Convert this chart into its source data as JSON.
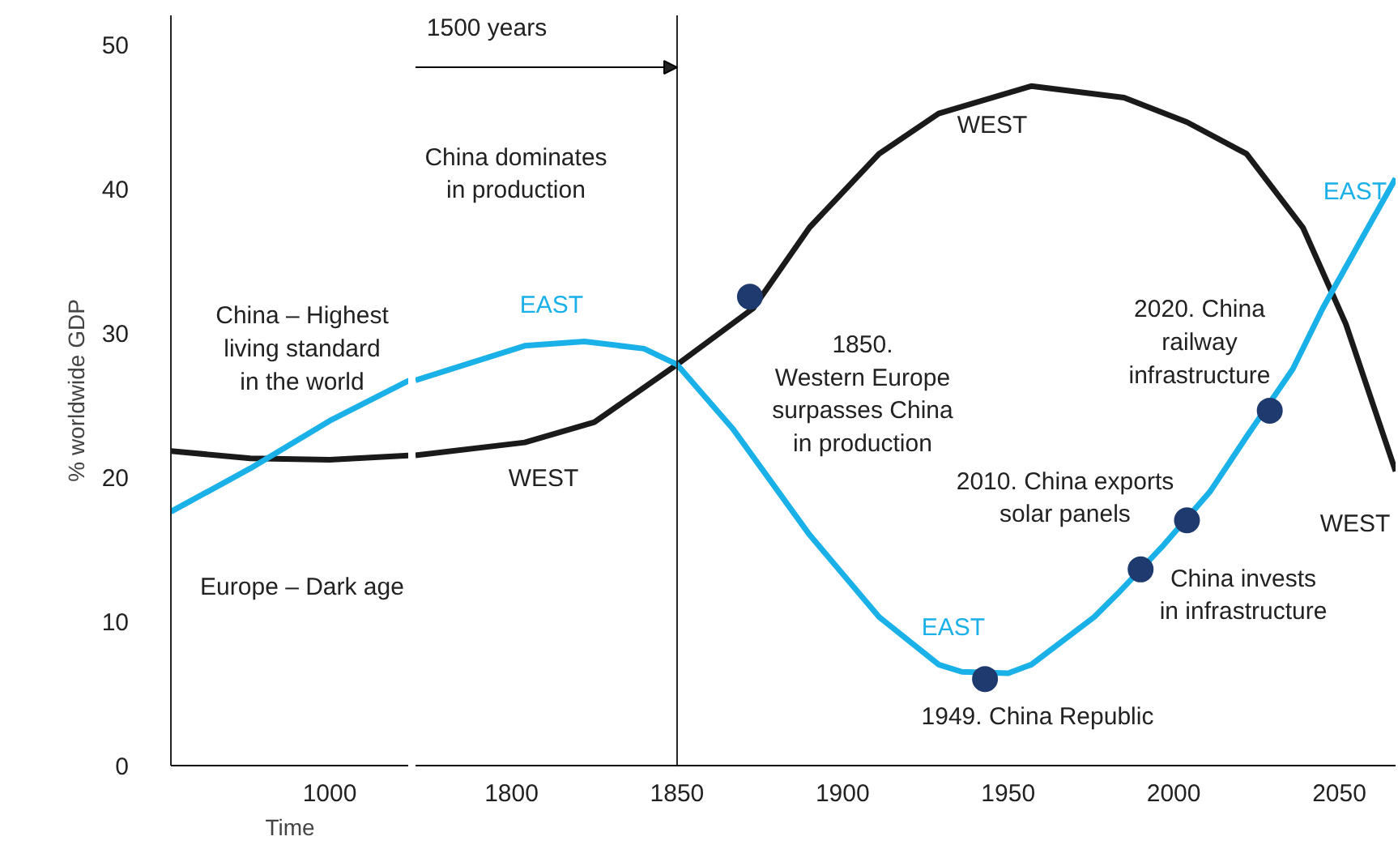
{
  "chart_data": [
    {
      "type": "line",
      "xlabel": "Time",
      "ylabel": "% worldwide GDP",
      "categories": [
        null,
        null,
        "1000",
        null
      ],
      "ylim": [
        0,
        52
      ],
      "yticks": [
        0,
        10,
        20,
        30,
        40,
        50
      ],
      "grid": false,
      "line_style": "solid",
      "series": [
        {
          "color": "#1a1a1a",
          "values": [
            21.8,
            21.3,
            21.2,
            21.5
          ]
        },
        {
          "color": "#1ab0e8",
          "values": [
            17.6,
            20.6,
            23.9,
            26.7
          ]
        }
      ],
      "annotations": [
        "China – Highest\nliving standard\nin the world",
        "Europe – Dark age"
      ]
    },
    {
      "type": "line",
      "xlim": [
        1771,
        2067
      ],
      "ylim": [
        0,
        52
      ],
      "xticks": [
        1800,
        1850,
        1900,
        1950,
        2000,
        2050
      ],
      "yticks": [
        0,
        10,
        20,
        30,
        40,
        50
      ],
      "tick_labels": "x",
      "grid": false,
      "line_style": "solid",
      "series": [
        {
          "color": "#1a1a1a",
          "x": [
            1771,
            1804,
            1825,
            1850,
            1873,
            1890,
            1911,
            1929,
            1957,
            1985,
            2004,
            2022,
            2039,
            2052,
            2067
          ],
          "values": [
            21.5,
            22.4,
            23.8,
            27.8,
            31.7,
            37.3,
            42.4,
            45.2,
            47.1,
            46.3,
            44.6,
            42.4,
            37.3,
            30.6,
            20.4
          ]
        },
        {
          "color": "#1ab0e8",
          "x": [
            1771,
            1804,
            1822,
            1840,
            1850,
            1867,
            1890,
            1911,
            1929,
            1936,
            1950,
            1957,
            1976,
            1983,
            1997,
            2011,
            2022,
            2036,
            2045,
            2067
          ],
          "values": [
            26.7,
            29.1,
            29.4,
            28.9,
            27.8,
            23.3,
            16.0,
            10.3,
            7.0,
            6.5,
            6.4,
            7.0,
            10.3,
            11.9,
            15.3,
            19.0,
            22.8,
            27.5,
            31.7,
            40.7
          ]
        },
        {
          "type": "scatter",
          "color": "#1f3a6e",
          "x": [
            1872,
            1943,
            1990,
            2004,
            2029
          ],
          "values": [
            32.5,
            6.0,
            13.6,
            17.0,
            24.6
          ]
        }
      ],
      "ref_lines": [
        {
          "axis": "x",
          "value": 1850
        }
      ],
      "annotations": [
        {
          "text": "1500 years",
          "x": 1850,
          "y": 48.4
        },
        "China dominates\nin production",
        "1850.\nWestern Europe\nsurpasses China\nin production",
        "1949. China Republic",
        "China invests\nin infrastructure",
        "2010. China exports\nsolar panels",
        "2020. China\nrailway\ninfrastructure",
        "WEST",
        "WEST",
        "WEST",
        "EAST",
        "EAST",
        "EAST"
      ]
    }
  ]
}
